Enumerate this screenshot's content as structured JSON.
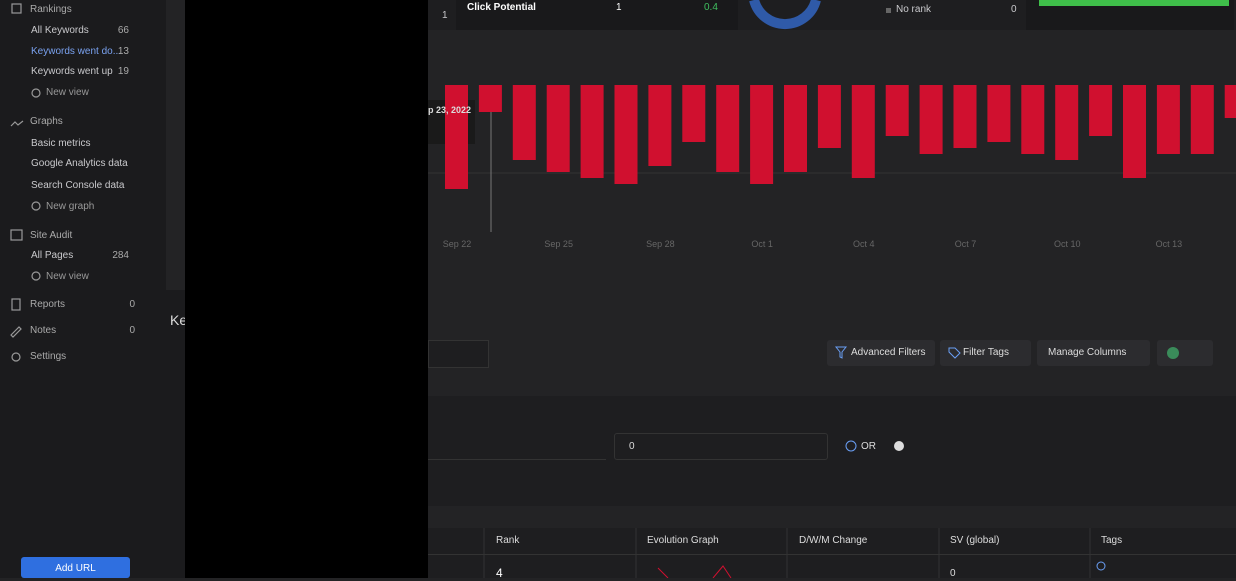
{
  "sidebar": {
    "rankings": {
      "title": "Rankings",
      "items": [
        {
          "label": "All Keywords",
          "count": 66
        },
        {
          "label": "Keywords went do...",
          "count": 13
        },
        {
          "label": "Keywords went up",
          "count": 19
        }
      ],
      "new": "New view"
    },
    "graphs": {
      "title": "Graphs",
      "items": [
        "Basic metrics",
        "Google Analytics data",
        "Search Console data"
      ],
      "new": "New graph"
    },
    "site_audit": {
      "title": "Site Audit",
      "items": [
        {
          "label": "All Pages",
          "count": 284
        }
      ],
      "new": "New view"
    },
    "reports": {
      "label": "Reports",
      "count": 0
    },
    "notes": {
      "label": "Notes",
      "count": 0
    },
    "settings": "Settings",
    "add_url": "Add URL"
  },
  "cut_heading": "Ke",
  "stats": {
    "left_value": 1,
    "click_potential": {
      "label": "Click Potential",
      "value": 1,
      "change": 0.4
    },
    "no_rank": {
      "label": "No rank",
      "value": 0
    }
  },
  "graph": {
    "tooltip": "p 23, 2022",
    "bars": [
      104,
      27,
      75,
      87,
      93,
      99,
      81,
      57,
      87,
      99,
      87,
      63,
      93,
      51,
      69,
      63,
      57,
      69,
      75,
      51,
      93,
      69,
      69,
      33
    ],
    "dates": [
      "Sep 22",
      "Sep 25",
      "Sep 28",
      "Oct 1",
      "Oct 4",
      "Oct 7",
      "Oct 10",
      "Oct 13"
    ]
  },
  "toolbar": {
    "advanced_filters": "Advanced Filters",
    "filter_tags": "Filter Tags",
    "manage_columns": "Manage Columns"
  },
  "filter": {
    "value": "0",
    "or": "OR"
  },
  "table": {
    "columns": [
      "Rank",
      "Evolution Graph",
      "D/W/M Change",
      "SV (global)",
      "Tags"
    ],
    "row": {
      "rank": 4,
      "sv": 0
    }
  }
}
